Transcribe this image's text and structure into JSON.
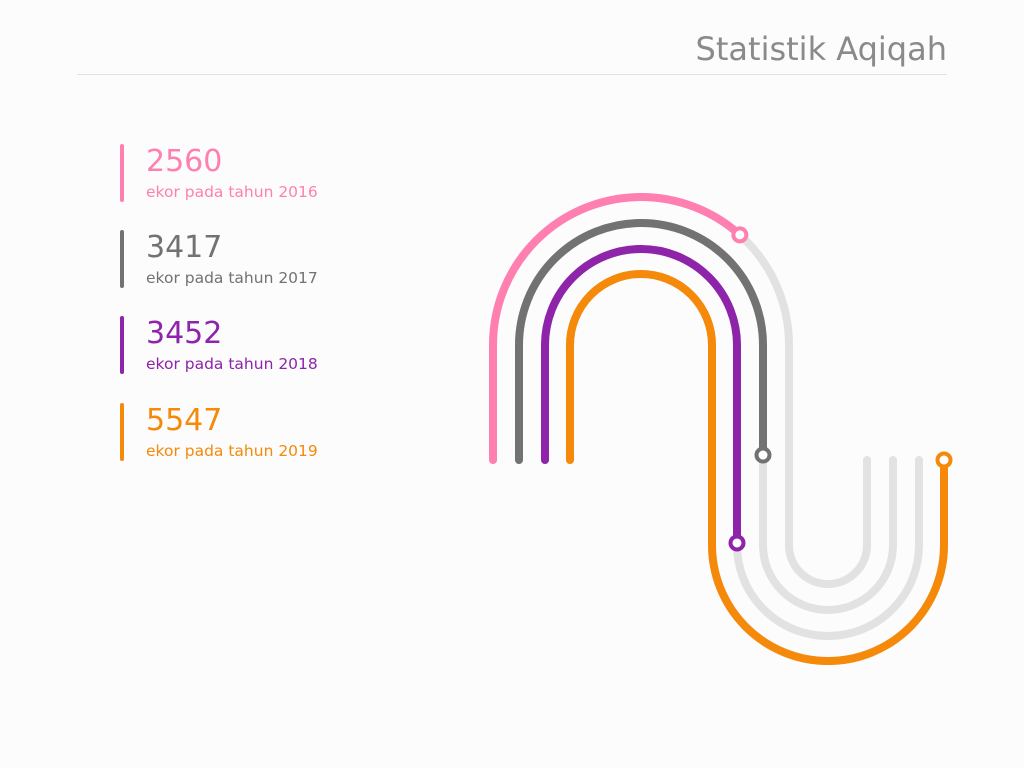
{
  "title": "Statistik Aqiqah",
  "stats": [
    {
      "value": "2560",
      "label": "ekor pada tahun 2016",
      "color": "#ff80b0"
    },
    {
      "value": "3417",
      "label": "ekor pada tahun 2017",
      "color": "#727272"
    },
    {
      "value": "3452",
      "label": "ekor pada tahun 2018",
      "color": "#8e24aa"
    },
    {
      "value": "5547",
      "label": "ekor pada tahun 2019",
      "color": "#f5890a"
    }
  ],
  "colors": {
    "track_background": "#e2e2e2",
    "title": "#8a8a8a",
    "rule": "#e1e1e1"
  },
  "chart_data": {
    "type": "bar",
    "title": "Statistik Aqiqah",
    "categories": [
      "2016",
      "2017",
      "2018",
      "2019"
    ],
    "values": [
      2560,
      3417,
      3452,
      5547
    ],
    "unit": "ekor",
    "legend": "left"
  }
}
